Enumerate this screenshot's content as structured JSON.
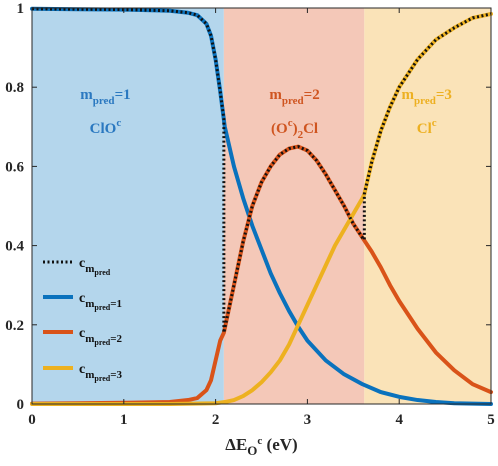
{
  "chart_data": {
    "type": "line",
    "xlim": [
      0,
      5
    ],
    "ylim": [
      0,
      1
    ],
    "x_ticks": [
      "0",
      "1",
      "2",
      "3",
      "4",
      "5"
    ],
    "y_ticks": [
      "0",
      "0.2",
      "0.4",
      "0.6",
      "0.8",
      "1"
    ],
    "xlabel": {
      "main": "ΔE",
      "sub": "O",
      "subsup": "c",
      "suffix": " (eV)"
    },
    "ylabel": "",
    "grid": false,
    "legend_position": "lower-left",
    "regions": [
      {
        "x0": 0,
        "x1": 2.09,
        "color": "#b4d6ec",
        "label_line1": {
          "main": "m",
          "sub": "pred",
          "suffix": "=1"
        },
        "label_line2": {
          "main": "ClO",
          "sup": "c"
        },
        "label_color": "#2a78c0",
        "label_x": 0.8
      },
      {
        "x0": 2.09,
        "x1": 3.62,
        "color": "#f4c8b8",
        "label_line1": {
          "main": "m",
          "sub": "pred",
          "suffix": "=2"
        },
        "label_line2": {
          "main": "(O",
          "sup": "c",
          "sub": "2",
          "suffix": "Cl"
        },
        "label_color": "#cf5520",
        "label_x": 2.86
      },
      {
        "x0": 3.62,
        "x1": 5,
        "color": "#fae3b8",
        "label_line1": {
          "main": "m",
          "sub": "pred",
          "suffix": "=3"
        },
        "label_line2": {
          "main": "Cl",
          "sup": "c"
        },
        "label_color": "#edb021",
        "label_x": 4.3
      }
    ],
    "series": [
      {
        "name": {
          "main": "c",
          "sub": "m",
          "subsub": "pred",
          "suffix": ""
        },
        "color": "#111111",
        "style": "dotted",
        "x": [
          0,
          0.5,
          1.0,
          1.5,
          1.7,
          1.8,
          1.9,
          1.95,
          2.0,
          2.05,
          2.09,
          2.09,
          2.2,
          2.3,
          2.4,
          2.5,
          2.6,
          2.7,
          2.8,
          2.9,
          3.0,
          3.1,
          3.2,
          3.3,
          3.4,
          3.5,
          3.6,
          3.62,
          3.62,
          3.7,
          3.8,
          3.9,
          4.0,
          4.2,
          4.4,
          4.6,
          4.8,
          5.0
        ],
        "values": [
          0.998,
          0.997,
          0.996,
          0.993,
          0.988,
          0.982,
          0.96,
          0.93,
          0.87,
          0.79,
          0.72,
          0.18,
          0.3,
          0.41,
          0.5,
          0.56,
          0.6,
          0.63,
          0.645,
          0.65,
          0.64,
          0.615,
          0.58,
          0.54,
          0.5,
          0.455,
          0.42,
          0.415,
          0.53,
          0.61,
          0.69,
          0.75,
          0.8,
          0.87,
          0.92,
          0.95,
          0.975,
          0.985
        ]
      },
      {
        "name": {
          "main": "c",
          "sub": "m",
          "subsub": "pred",
          "suffix": "=1"
        },
        "color": "#0a72bd",
        "style": "solid",
        "x": [
          0,
          0.5,
          1.0,
          1.5,
          1.7,
          1.8,
          1.9,
          1.95,
          2.0,
          2.05,
          2.1,
          2.2,
          2.3,
          2.4,
          2.5,
          2.6,
          2.7,
          2.8,
          2.9,
          3.0,
          3.2,
          3.4,
          3.6,
          3.8,
          4.0,
          4.2,
          4.4,
          4.6,
          4.8,
          5.0
        ],
        "values": [
          0.998,
          0.997,
          0.996,
          0.993,
          0.988,
          0.982,
          0.96,
          0.93,
          0.87,
          0.79,
          0.7,
          0.6,
          0.52,
          0.45,
          0.39,
          0.33,
          0.28,
          0.235,
          0.195,
          0.16,
          0.11,
          0.075,
          0.05,
          0.03,
          0.018,
          0.01,
          0.005,
          0.002,
          0.001,
          0.0
        ]
      },
      {
        "name": {
          "main": "c",
          "sub": "m",
          "subsub": "pred",
          "suffix": "=2"
        },
        "color": "#d95319",
        "style": "solid",
        "x": [
          0,
          0.5,
          1.0,
          1.5,
          1.7,
          1.8,
          1.9,
          1.95,
          2.0,
          2.05,
          2.09,
          2.2,
          2.3,
          2.4,
          2.5,
          2.6,
          2.7,
          2.8,
          2.9,
          3.0,
          3.1,
          3.2,
          3.3,
          3.4,
          3.5,
          3.6,
          3.7,
          3.8,
          3.9,
          4.0,
          4.2,
          4.4,
          4.6,
          4.8,
          5.0
        ],
        "values": [
          0.001,
          0.002,
          0.003,
          0.005,
          0.01,
          0.015,
          0.035,
          0.06,
          0.11,
          0.16,
          0.18,
          0.3,
          0.41,
          0.5,
          0.56,
          0.6,
          0.63,
          0.645,
          0.65,
          0.64,
          0.615,
          0.58,
          0.54,
          0.5,
          0.455,
          0.42,
          0.385,
          0.345,
          0.3,
          0.26,
          0.19,
          0.13,
          0.085,
          0.05,
          0.03
        ]
      },
      {
        "name": {
          "main": "c",
          "sub": "m",
          "subsub": "pred",
          "suffix": "=3"
        },
        "color": "#edb120",
        "style": "solid",
        "x": [
          0,
          1.0,
          1.5,
          2.0,
          2.1,
          2.2,
          2.3,
          2.4,
          2.5,
          2.6,
          2.7,
          2.8,
          2.9,
          3.0,
          3.1,
          3.2,
          3.3,
          3.4,
          3.5,
          3.6,
          3.62,
          3.7,
          3.8,
          3.9,
          4.0,
          4.2,
          4.4,
          4.6,
          4.8,
          5.0
        ],
        "values": [
          0.0,
          0.0,
          0.0,
          0.002,
          0.005,
          0.01,
          0.02,
          0.035,
          0.055,
          0.08,
          0.11,
          0.15,
          0.2,
          0.25,
          0.3,
          0.35,
          0.4,
          0.44,
          0.48,
          0.52,
          0.53,
          0.61,
          0.69,
          0.75,
          0.8,
          0.87,
          0.92,
          0.95,
          0.975,
          0.985
        ]
      }
    ]
  }
}
